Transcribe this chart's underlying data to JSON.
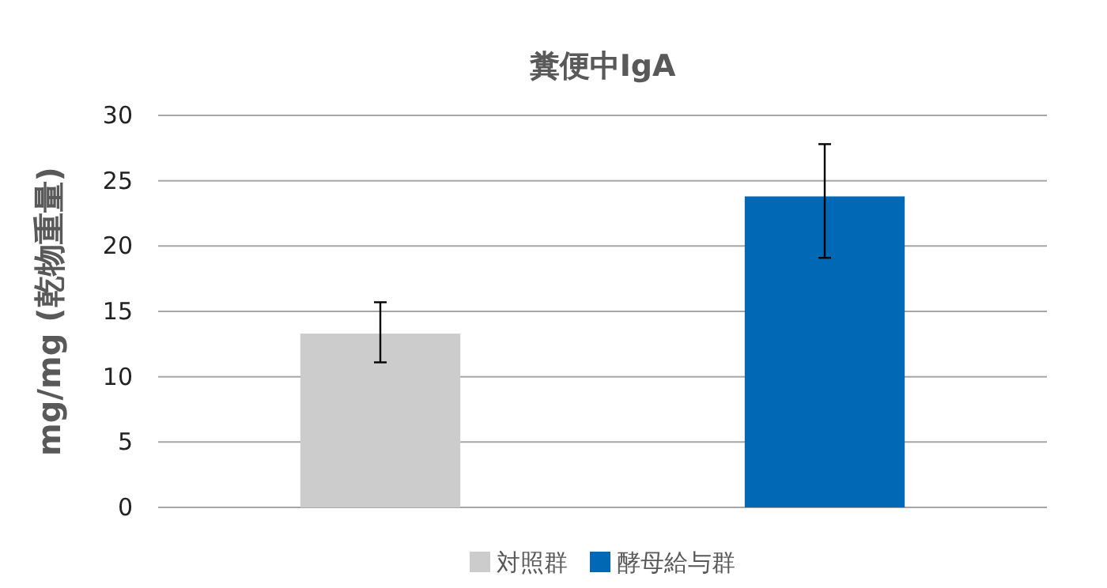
{
  "chart_data": {
    "type": "bar",
    "title": "糞便中IgA",
    "ylabel": "mg/mg (乾物重量)",
    "categories": [
      null,
      null
    ],
    "series": [
      {
        "name": "対照群",
        "color": "#cccccc",
        "values": [
          13.3,
          null
        ],
        "errors": [
          [
            11.1,
            15.7
          ],
          null
        ]
      },
      {
        "name": "酵母給与群",
        "color": "#0068b4",
        "values": [
          null,
          23.8
        ],
        "errors": [
          null,
          [
            19.1,
            27.8
          ]
        ]
      }
    ],
    "ylim": [
      0,
      30
    ],
    "yticks": [
      0,
      5,
      10,
      15,
      20,
      25,
      30
    ],
    "grid": "y",
    "legend": "bottom"
  }
}
